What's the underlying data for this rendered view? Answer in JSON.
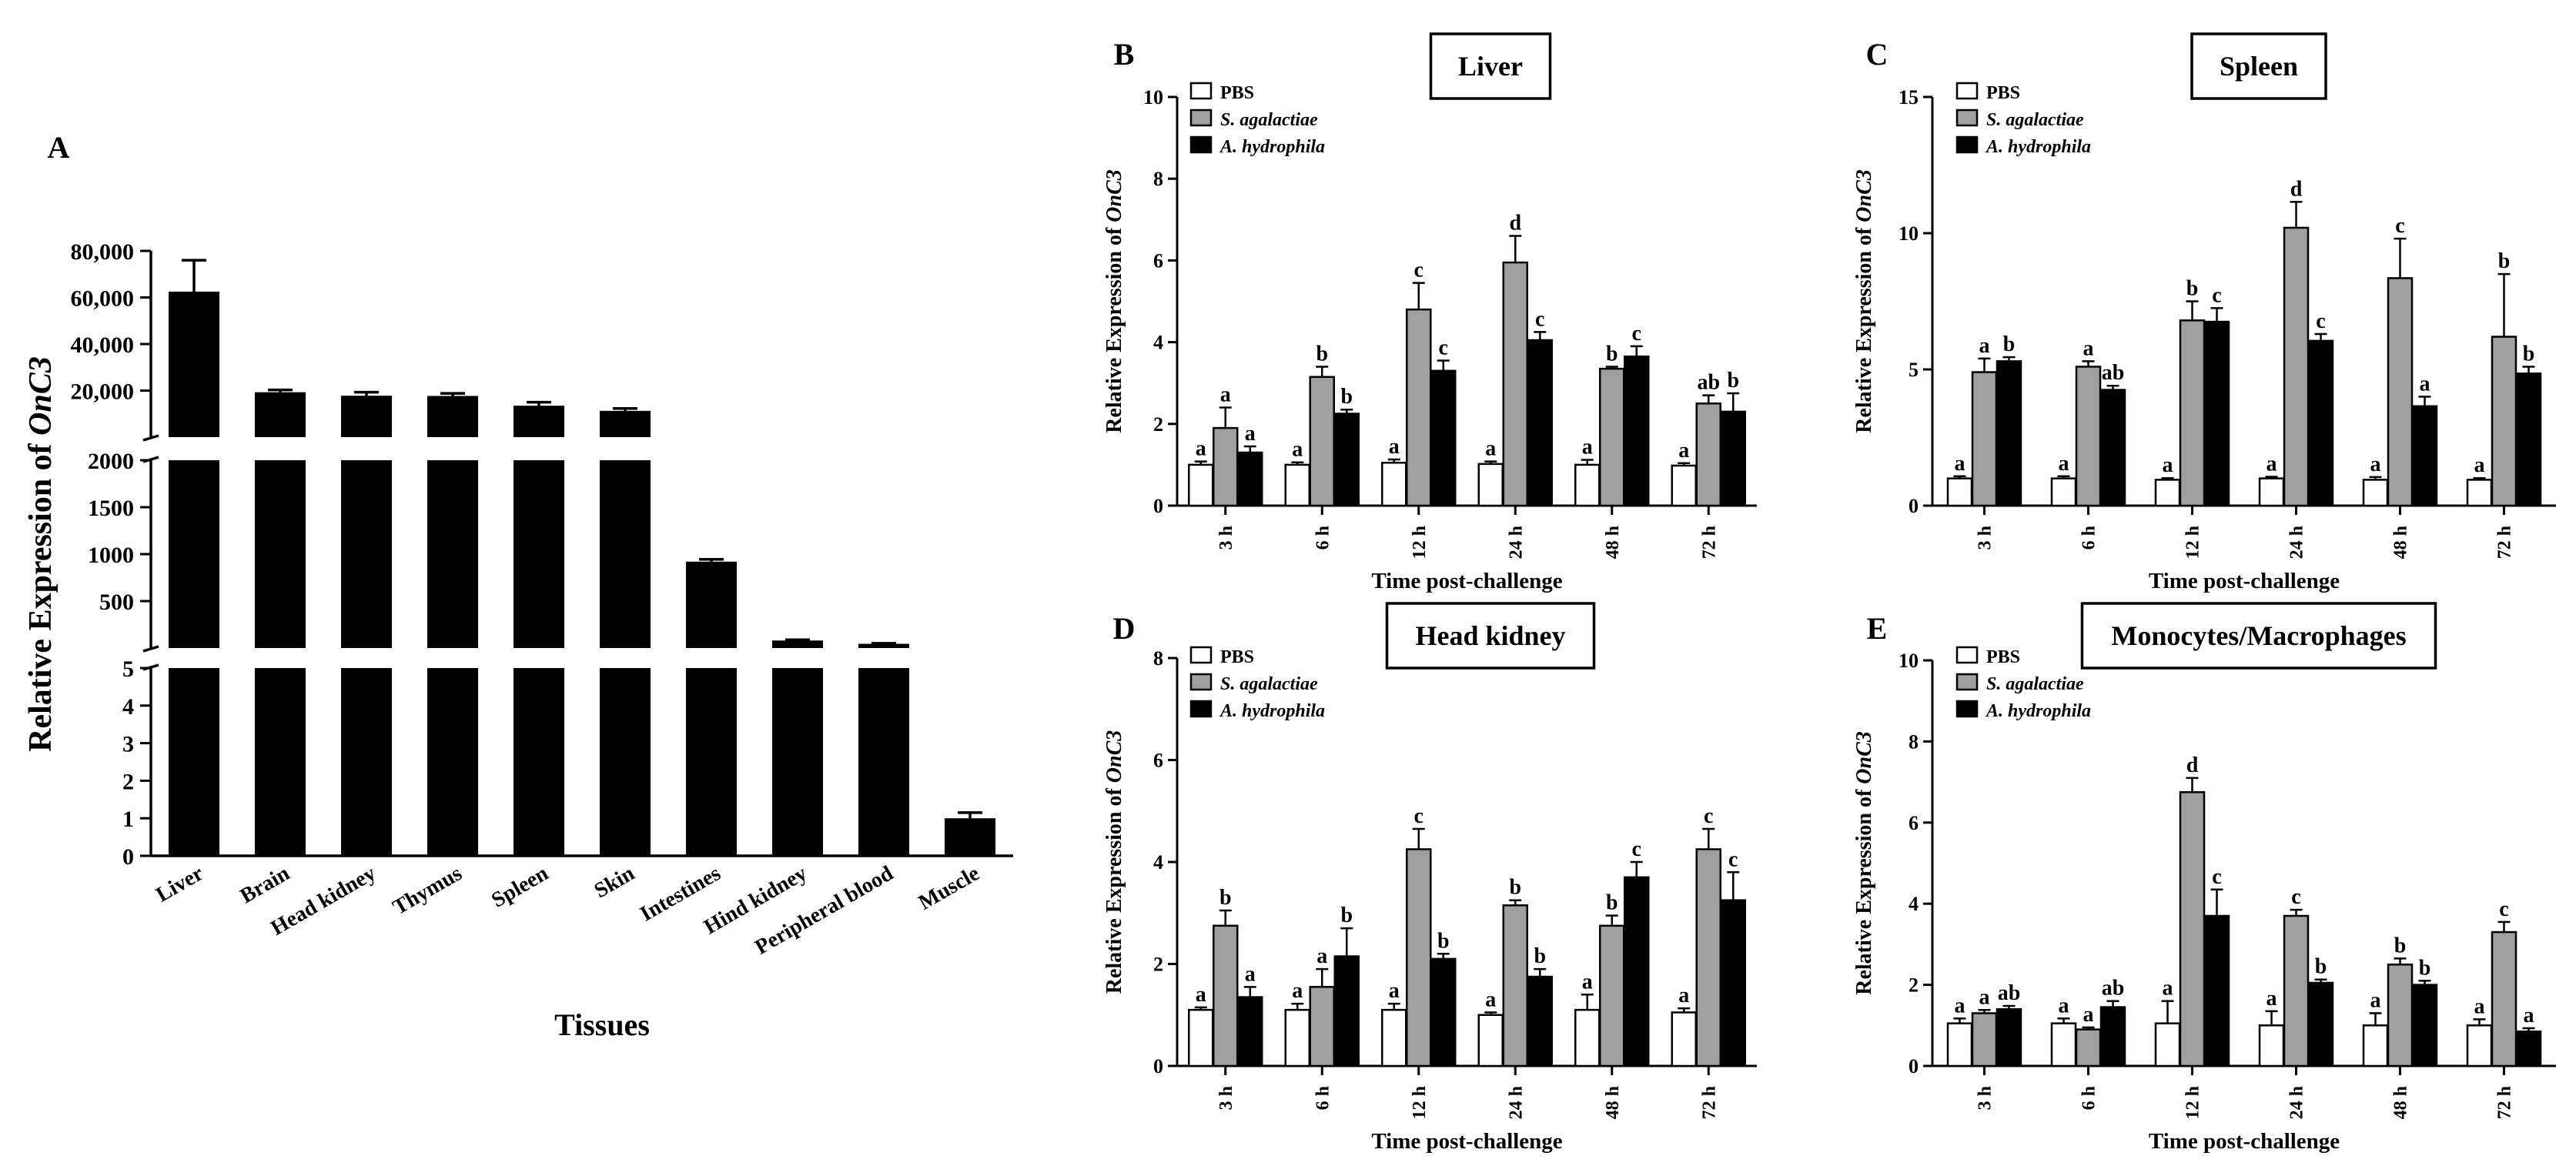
{
  "chart_data": [
    {
      "panel": "A",
      "type": "bar",
      "ylabel_prefix": "Relative Expression of ",
      "ylabel_gene": "OnC3",
      "xlabel": "Tissues",
      "categories": [
        "Liver",
        "Brain",
        "Head kidney",
        "Thymus",
        "Spleen",
        "Skin",
        "Intestines",
        "Hind kidney",
        "Peripheral blood",
        "Muscle"
      ],
      "values": [
        62500,
        19300,
        17800,
        17700,
        13500,
        11300,
        920,
        80,
        45,
        1.0
      ],
      "errors": [
        13500,
        1000,
        1500,
        1100,
        1500,
        1000,
        25,
        8,
        5,
        0.15
      ],
      "axis_segments": [
        {
          "ylim": [
            0,
            5
          ],
          "ticks": [
            0,
            1,
            2,
            3,
            4,
            5
          ],
          "tick_labels": [
            "0",
            "1",
            "2",
            "3",
            "4",
            "5"
          ]
        },
        {
          "ylim": [
            0,
            2000
          ],
          "ticks": [
            500,
            1000,
            1500,
            2000
          ],
          "tick_labels": [
            "500",
            "1000",
            "1500",
            "2000"
          ]
        },
        {
          "ylim": [
            0,
            80000
          ],
          "ticks": [
            20000,
            40000,
            60000,
            80000
          ],
          "tick_labels": [
            "20,000",
            "40,000",
            "60,000",
            "80,000"
          ]
        }
      ],
      "broken_axis": true,
      "bar_color": "#000000"
    },
    {
      "panel": "B",
      "type": "bar",
      "title": "Liver",
      "ylabel_prefix": "Relative Expression of ",
      "ylabel_gene": "OnC3",
      "xlabel": "Time post-challenge",
      "categories": [
        "3 h",
        "6 h",
        "12 h",
        "24 h",
        "48 h",
        "72 h"
      ],
      "ylim": [
        0,
        10
      ],
      "yticks": [
        0,
        2,
        4,
        6,
        8,
        10
      ],
      "series": [
        {
          "name": "PBS",
          "color": "#ffffff",
          "values": [
            1.0,
            1.0,
            1.05,
            1.02,
            1.0,
            0.98
          ],
          "errors": [
            0.08,
            0.06,
            0.08,
            0.06,
            0.12,
            0.06
          ],
          "letters": [
            "a",
            "a",
            "a",
            "a",
            "a",
            "a"
          ]
        },
        {
          "name": "S. agalactiae",
          "color": "#a0a0a0",
          "values": [
            1.9,
            3.15,
            4.8,
            5.95,
            3.35,
            2.5
          ],
          "errors": [
            0.5,
            0.25,
            0.65,
            0.65,
            0.05,
            0.2
          ],
          "letters": [
            "a",
            "b",
            "c",
            "d",
            "b",
            "ab"
          ]
        },
        {
          "name": "A. hydrophila",
          "color": "#000000",
          "values": [
            1.3,
            2.25,
            3.3,
            4.05,
            3.65,
            2.3
          ],
          "errors": [
            0.15,
            0.1,
            0.25,
            0.2,
            0.25,
            0.45
          ],
          "letters": [
            "a",
            "b",
            "c",
            "c",
            "c",
            "b"
          ]
        }
      ]
    },
    {
      "panel": "C",
      "type": "bar",
      "title": "Spleen",
      "ylabel_prefix": "Relative Expression of ",
      "ylabel_gene": "OnC3",
      "xlabel": "Time post-challenge",
      "categories": [
        "3 h",
        "6 h",
        "12 h",
        "24 h",
        "48 h",
        "72 h"
      ],
      "ylim": [
        0,
        15
      ],
      "yticks": [
        0,
        5,
        10,
        15
      ],
      "series": [
        {
          "name": "PBS",
          "color": "#ffffff",
          "values": [
            1.0,
            1.0,
            0.95,
            1.0,
            0.95,
            0.95
          ],
          "errors": [
            0.08,
            0.08,
            0.06,
            0.06,
            0.1,
            0.06
          ],
          "letters": [
            "a",
            "a",
            "a",
            "a",
            "a",
            "a"
          ]
        },
        {
          "name": "S. agalactiae",
          "color": "#a0a0a0",
          "values": [
            4.9,
            5.1,
            6.8,
            10.2,
            8.35,
            6.2
          ],
          "errors": [
            0.5,
            0.2,
            0.7,
            0.95,
            1.45,
            2.3
          ],
          "letters": [
            "a",
            "a",
            "b",
            "d",
            "c",
            "b"
          ]
        },
        {
          "name": "A. hydrophila",
          "color": "#000000",
          "values": [
            5.3,
            4.25,
            6.75,
            6.05,
            3.65,
            4.85
          ],
          "errors": [
            0.15,
            0.15,
            0.5,
            0.25,
            0.35,
            0.25
          ],
          "letters": [
            "b",
            "ab",
            "c",
            "c",
            "a",
            "b"
          ]
        }
      ]
    },
    {
      "panel": "D",
      "type": "bar",
      "title": "Head kidney",
      "ylabel_prefix": "Relative Expression of ",
      "ylabel_gene": "OnC3",
      "xlabel": "Time post-challenge",
      "categories": [
        "3 h",
        "6 h",
        "12 h",
        "24 h",
        "48 h",
        "72 h"
      ],
      "ylim": [
        0,
        8
      ],
      "yticks": [
        0,
        2,
        4,
        6,
        8
      ],
      "series": [
        {
          "name": "PBS",
          "color": "#ffffff",
          "values": [
            1.1,
            1.1,
            1.1,
            1.0,
            1.1,
            1.05
          ],
          "errors": [
            0.05,
            0.12,
            0.12,
            0.05,
            0.3,
            0.08
          ],
          "letters": [
            "a",
            "a",
            "a",
            "a",
            "a",
            "a"
          ]
        },
        {
          "name": "S. agalactiae",
          "color": "#a0a0a0",
          "values": [
            2.75,
            1.55,
            4.25,
            3.15,
            2.75,
            4.25
          ],
          "errors": [
            0.3,
            0.35,
            0.4,
            0.1,
            0.2,
            0.4
          ],
          "letters": [
            "b",
            "a",
            "c",
            "b",
            "b",
            "c"
          ]
        },
        {
          "name": "A. hydrophila",
          "color": "#000000",
          "values": [
            1.35,
            2.15,
            2.1,
            1.75,
            3.7,
            3.25
          ],
          "errors": [
            0.2,
            0.55,
            0.1,
            0.15,
            0.3,
            0.55
          ],
          "letters": [
            "a",
            "b",
            "b",
            "b",
            "c",
            "c"
          ]
        }
      ]
    },
    {
      "panel": "E",
      "type": "bar",
      "title": "Monocytes/Macrophages",
      "ylabel_prefix": "Relative Expression of ",
      "ylabel_gene": "OnC3",
      "xlabel": "Time post-challenge",
      "categories": [
        "3 h",
        "6 h",
        "12 h",
        "24 h",
        "48 h",
        "72 h"
      ],
      "ylim": [
        0,
        10
      ],
      "yticks": [
        0,
        2,
        4,
        6,
        8,
        10
      ],
      "series": [
        {
          "name": "PBS",
          "color": "#ffffff",
          "values": [
            1.05,
            1.05,
            1.05,
            1.0,
            1.0,
            1.0
          ],
          "errors": [
            0.12,
            0.12,
            0.55,
            0.35,
            0.3,
            0.15
          ],
          "letters": [
            "a",
            "a",
            "a",
            "a",
            "a",
            "a"
          ]
        },
        {
          "name": "S. agalactiae",
          "color": "#a0a0a0",
          "values": [
            1.3,
            0.9,
            6.75,
            3.7,
            2.5,
            3.3
          ],
          "errors": [
            0.08,
            0.05,
            0.35,
            0.15,
            0.15,
            0.25
          ],
          "letters": [
            "a",
            "a",
            "d",
            "c",
            "b",
            "c"
          ]
        },
        {
          "name": "A. hydrophila",
          "color": "#000000",
          "values": [
            1.4,
            1.45,
            3.7,
            2.05,
            2.0,
            0.85
          ],
          "errors": [
            0.08,
            0.15,
            0.65,
            0.08,
            0.1,
            0.08
          ],
          "letters": [
            "ab",
            "ab",
            "c",
            "b",
            "b",
            "a"
          ]
        }
      ]
    }
  ]
}
